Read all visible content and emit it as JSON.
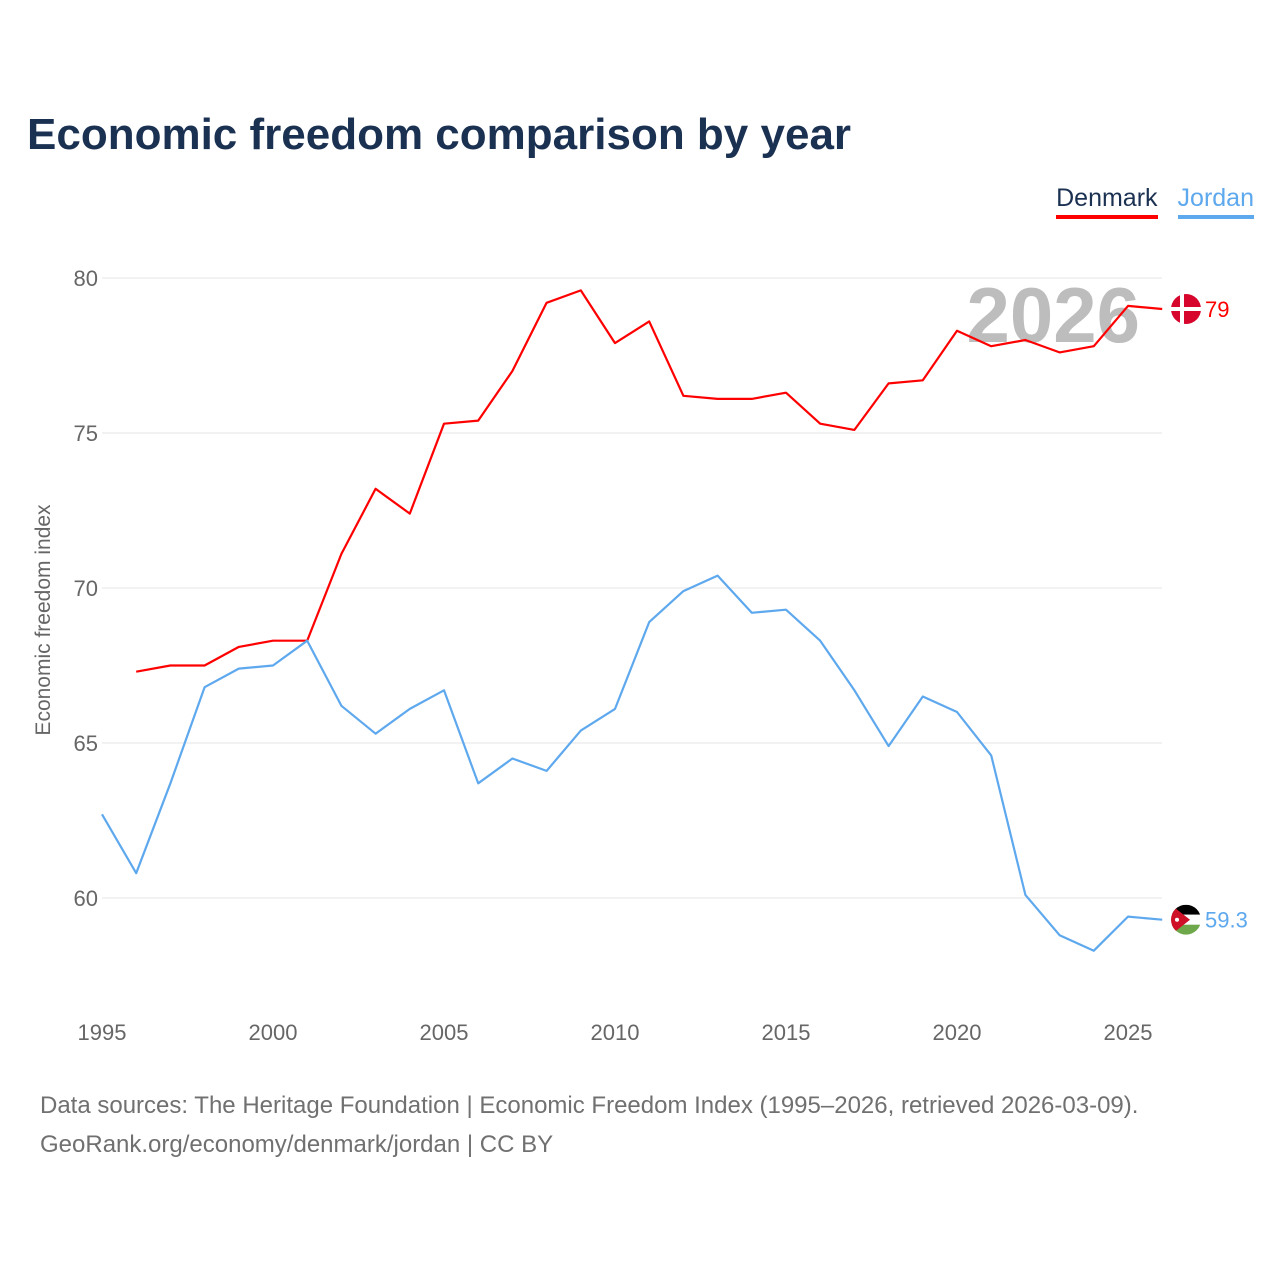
{
  "chart_data": {
    "type": "line",
    "title": "Economic freedom comparison by year",
    "xlabel": "",
    "ylabel": "Economic freedom index",
    "xlim": [
      1995,
      2026
    ],
    "ylim": [
      57,
      81
    ],
    "x_ticks": [
      "1995",
      "2000",
      "2005",
      "2010",
      "2015",
      "2020",
      "2025"
    ],
    "y_ticks": [
      "60",
      "65",
      "70",
      "75",
      "80"
    ],
    "grid": true,
    "legend_placement": "top-right",
    "watermark_year": "2026",
    "series": [
      {
        "name": "Denmark",
        "color": "#ff0000",
        "end_label": "79",
        "x": [
          1996,
          1997,
          1998,
          1999,
          2000,
          2001,
          2002,
          2003,
          2004,
          2005,
          2006,
          2007,
          2008,
          2009,
          2010,
          2011,
          2012,
          2013,
          2014,
          2015,
          2016,
          2017,
          2018,
          2019,
          2020,
          2021,
          2022,
          2023,
          2024,
          2025,
          2026
        ],
        "values": [
          67.3,
          67.5,
          67.5,
          68.1,
          68.3,
          68.3,
          71.1,
          73.2,
          72.4,
          75.3,
          75.4,
          77.0,
          79.2,
          79.6,
          77.9,
          78.6,
          76.2,
          76.1,
          76.1,
          76.3,
          75.3,
          75.1,
          76.6,
          76.7,
          78.3,
          77.8,
          78.0,
          77.6,
          77.8,
          79.1,
          79.0
        ]
      },
      {
        "name": "Jordan",
        "color": "#5ea8ee",
        "end_label": "59.3",
        "x": [
          1995,
          1996,
          1997,
          1998,
          1999,
          2000,
          2001,
          2002,
          2003,
          2004,
          2005,
          2006,
          2007,
          2008,
          2009,
          2010,
          2011,
          2012,
          2013,
          2014,
          2015,
          2016,
          2017,
          2018,
          2019,
          2020,
          2021,
          2022,
          2023,
          2024,
          2025,
          2026
        ],
        "values": [
          62.7,
          60.8,
          63.7,
          66.8,
          67.4,
          67.5,
          68.3,
          66.2,
          65.3,
          66.1,
          66.7,
          63.7,
          64.5,
          64.1,
          65.4,
          66.1,
          68.9,
          69.9,
          70.4,
          69.2,
          69.3,
          68.3,
          66.7,
          64.9,
          66.5,
          66.0,
          64.6,
          60.1,
          58.8,
          58.3,
          59.4,
          59.3
        ]
      }
    ]
  },
  "footer": {
    "line1": "Data sources: The Heritage Foundation | Economic Freedom Index (1995–2026, retrieved 2026-03-09).",
    "line2": "GeoRank.org/economy/denmark/jordan | CC BY"
  }
}
